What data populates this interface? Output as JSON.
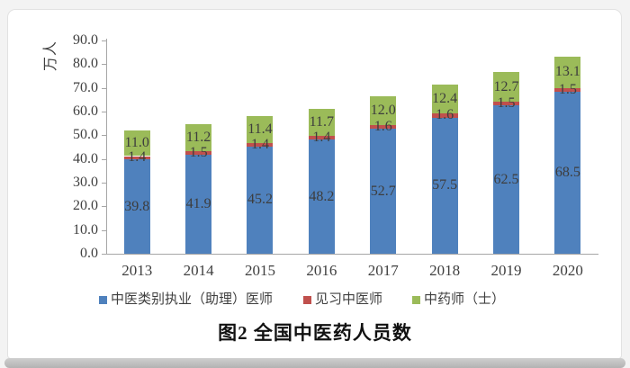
{
  "chart_data": {
    "type": "bar",
    "stacked": true,
    "title": "图2 全国中医药人员数",
    "ylabel": "万人",
    "ylim": [
      0,
      90
    ],
    "ytick_step": 10,
    "ytick_decimals": 1,
    "grid": false,
    "legend_position": "bottom",
    "categories": [
      "2013",
      "2014",
      "2015",
      "2016",
      "2017",
      "2018",
      "2019",
      "2020"
    ],
    "series": [
      {
        "name": "中医类别执业（助理）医师",
        "color": "#4F81BD",
        "values": [
          39.8,
          41.9,
          45.2,
          48.2,
          52.7,
          57.5,
          62.5,
          68.5
        ]
      },
      {
        "name": "见习中医师",
        "color": "#C0504D",
        "values": [
          1.4,
          1.5,
          1.4,
          1.4,
          1.6,
          1.6,
          1.5,
          1.5
        ]
      },
      {
        "name": "中药师（士）",
        "color": "#9BBB59",
        "values": [
          11.0,
          11.2,
          11.4,
          11.7,
          12.0,
          12.4,
          12.7,
          13.1
        ]
      }
    ],
    "value_labels": true,
    "colors": {
      "axis": "#a6a6a6",
      "tick_label": "#3f3f3f",
      "value_label": "#3d3d3d"
    }
  }
}
